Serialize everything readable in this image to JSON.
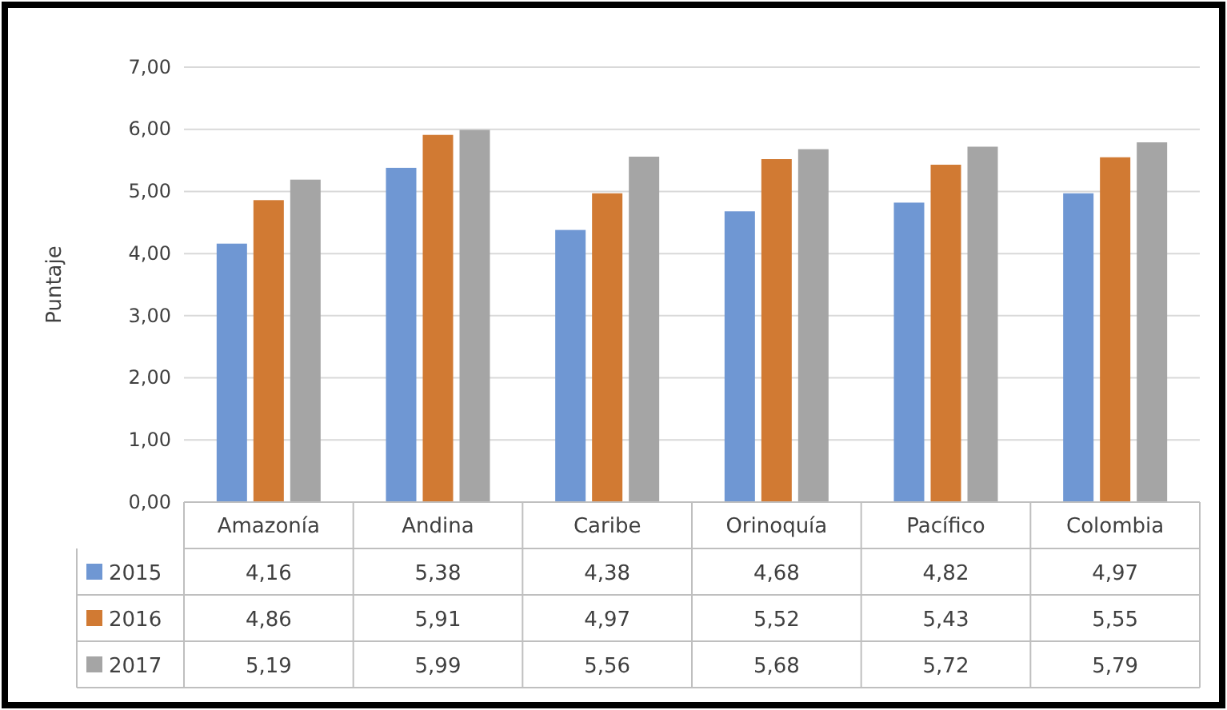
{
  "chart_data": {
    "type": "bar",
    "ylabel": "Puntaje",
    "categories": [
      "Amazonía",
      "Andina",
      "Caribe",
      "Orinoquía",
      "Pacífico",
      "Colombia"
    ],
    "series": [
      {
        "name": "2015",
        "color": "#6f97d3",
        "values": [
          4.16,
          5.38,
          4.38,
          4.68,
          4.82,
          4.97
        ],
        "value_labels": [
          "4,16",
          "5,38",
          "4,38",
          "4,68",
          "4,82",
          "4,97"
        ]
      },
      {
        "name": "2016",
        "color": "#d17a33",
        "values": [
          4.86,
          5.91,
          4.97,
          5.52,
          5.43,
          5.55
        ],
        "value_labels": [
          "4,86",
          "5,91",
          "4,97",
          "5,52",
          "5,43",
          "5,55"
        ]
      },
      {
        "name": "2017",
        "color": "#a5a5a5",
        "values": [
          5.19,
          5.99,
          5.56,
          5.68,
          5.72,
          5.79
        ],
        "value_labels": [
          "5,19",
          "5,99",
          "5,56",
          "5,68",
          "5,72",
          "5,79"
        ]
      }
    ],
    "ylim": [
      0,
      7
    ],
    "yticks": [
      {
        "value": 0,
        "label": "0,00"
      },
      {
        "value": 1,
        "label": "1,00"
      },
      {
        "value": 2,
        "label": "2,00"
      },
      {
        "value": 3,
        "label": "3,00"
      },
      {
        "value": 4,
        "label": "4,00"
      },
      {
        "value": 5,
        "label": "5,00"
      },
      {
        "value": 6,
        "label": "6,00"
      },
      {
        "value": 7,
        "label": "7,00"
      }
    ],
    "grid": "y",
    "legend": "bottom"
  }
}
